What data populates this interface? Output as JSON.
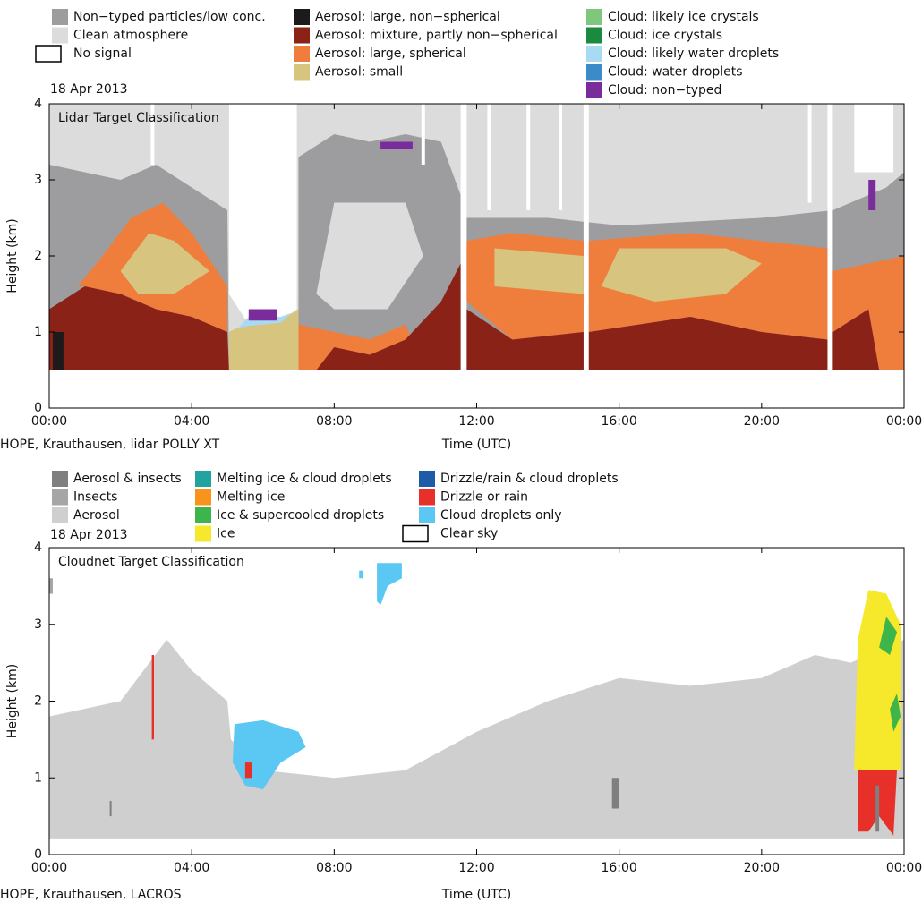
{
  "chart_data": [
    {
      "type": "classification",
      "title": "Lidar Target Classification",
      "date": "18 Apr 2013",
      "xlabel": "Time (UTC)",
      "ylabel": "Height (km)",
      "footnote": "HOPE, Krauthausen, lidar POLLY XT",
      "xlim": [
        0,
        24
      ],
      "ylim": [
        0,
        4
      ],
      "xticks": [
        {
          "value": 0,
          "label": "00:00"
        },
        {
          "value": 4,
          "label": "04:00"
        },
        {
          "value": 8,
          "label": "08:00"
        },
        {
          "value": 12,
          "label": "12:00"
        },
        {
          "value": 16,
          "label": "16:00"
        },
        {
          "value": 20,
          "label": "20:00"
        },
        {
          "value": 24,
          "label": "00:00"
        }
      ],
      "yticks": [
        0,
        1,
        2,
        3,
        4
      ],
      "legend": [
        {
          "name": "Non−typed particles/low conc.",
          "color": "#9d9d9f"
        },
        {
          "name": "Clean atmosphere",
          "color": "#dcdcdd"
        },
        {
          "name": "No signal",
          "color": "#ffffff"
        },
        {
          "name": "Aerosol: large, non−spherical",
          "color": "#1c1a1a"
        },
        {
          "name": "Aerosol: mixture, partly non−spherical",
          "color": "#8a2217"
        },
        {
          "name": "Aerosol: large, spherical",
          "color": "#ef7d3c"
        },
        {
          "name": "Aerosol: small",
          "color": "#d7c47f"
        },
        {
          "name": "Cloud: likely ice crystals",
          "color": "#7fc77c"
        },
        {
          "name": "Cloud: ice crystals",
          "color": "#1a8a3e"
        },
        {
          "name": "Cloud: likely water droplets",
          "color": "#a9daf4"
        },
        {
          "name": "Cloud: water droplets",
          "color": "#3c8bc9"
        },
        {
          "name": "Cloud: non−typed",
          "color": "#7a2b9c"
        }
      ]
    },
    {
      "type": "classification",
      "title": "Cloudnet Target Classification",
      "date": "18 Apr 2013",
      "xlabel": "Time (UTC)",
      "ylabel": "Height (km)",
      "footnote": "HOPE, Krauthausen, LACROS",
      "xlim": [
        0,
        24
      ],
      "ylim": [
        0,
        4
      ],
      "xticks": [
        {
          "value": 0,
          "label": "00:00"
        },
        {
          "value": 4,
          "label": "04:00"
        },
        {
          "value": 8,
          "label": "08:00"
        },
        {
          "value": 12,
          "label": "12:00"
        },
        {
          "value": 16,
          "label": "16:00"
        },
        {
          "value": 20,
          "label": "20:00"
        },
        {
          "value": 24,
          "label": "00:00"
        }
      ],
      "yticks": [
        0,
        1,
        2,
        3,
        4
      ],
      "legend": [
        {
          "name": "Aerosol & insects",
          "color": "#7f7f7f"
        },
        {
          "name": "Insects",
          "color": "#a6a6a8"
        },
        {
          "name": "Aerosol",
          "color": "#cfcfd0"
        },
        {
          "name": "Melting ice & cloud droplets",
          "color": "#23a3a0"
        },
        {
          "name": "Melting ice",
          "color": "#f7941e"
        },
        {
          "name": "Ice & supercooled droplets",
          "color": "#3db54a"
        },
        {
          "name": "Ice",
          "color": "#f6e92b"
        },
        {
          "name": "Drizzle/rain & cloud droplets",
          "color": "#1f5ca8"
        },
        {
          "name": "Drizzle or rain",
          "color": "#e8302b"
        },
        {
          "name": "Cloud droplets only",
          "color": "#5ac8f2"
        },
        {
          "name": "Clear sky",
          "color": "#ffffff"
        }
      ]
    }
  ]
}
